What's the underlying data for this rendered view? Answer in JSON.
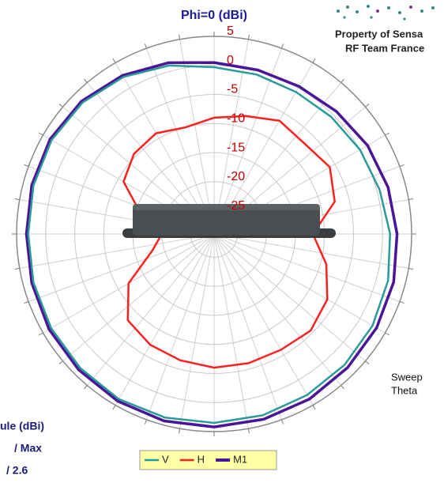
{
  "chart_data": {
    "type": "polar",
    "title": "Phi=0 (dBi)",
    "x": [
      0,
      15,
      30,
      45,
      60,
      75,
      90,
      105,
      120,
      135,
      150,
      165,
      180,
      195,
      210,
      225,
      240,
      255,
      270,
      285,
      300,
      315,
      330,
      345
    ],
    "series": [
      {
        "name": "V",
        "color": "#2a9a9a",
        "values": [
          -0.3,
          -0.6,
          -0.8,
          -0.5,
          0,
          0.5,
          1.3,
          2,
          2.5,
          2.8,
          3,
          3.3,
          3.5,
          3.7,
          3.8,
          3.6,
          3.4,
          3.2,
          3,
          3.2,
          3.3,
          3,
          2.2,
          1
        ]
      },
      {
        "name": "H",
        "color": "#ff2020",
        "values": [
          -9,
          -8,
          -6.5,
          -7,
          -6,
          -7.5,
          -12,
          -9,
          -6.5,
          -5.5,
          -6,
          -6,
          -6,
          -6.5,
          -7,
          -8,
          -12,
          -18,
          -20,
          -16,
          -11,
          -9.5,
          -9,
          -10
        ]
      },
      {
        "name": "M1",
        "color": "#4a1596",
        "values": [
          0.5,
          0.2,
          0.3,
          0.8,
          1.5,
          2,
          2.5,
          3,
          3.3,
          3.5,
          3.8,
          4,
          4.2,
          4.3,
          4.2,
          4,
          3.8,
          3.5,
          3.3,
          3.5,
          3.6,
          3.3,
          2.5,
          1.5
        ]
      }
    ],
    "rlim": [
      -29,
      5
    ],
    "rticks": [
      5,
      0,
      -5,
      -10,
      -15,
      -20,
      -25
    ],
    "notes": {
      "owner": "Property of Sensa",
      "team": "RF Team France",
      "sweep": "Sweep",
      "sweep_var": "Theta",
      "info": [
        "ule (dBi)",
        "/ Max",
        "/ 2.6"
      ]
    }
  }
}
